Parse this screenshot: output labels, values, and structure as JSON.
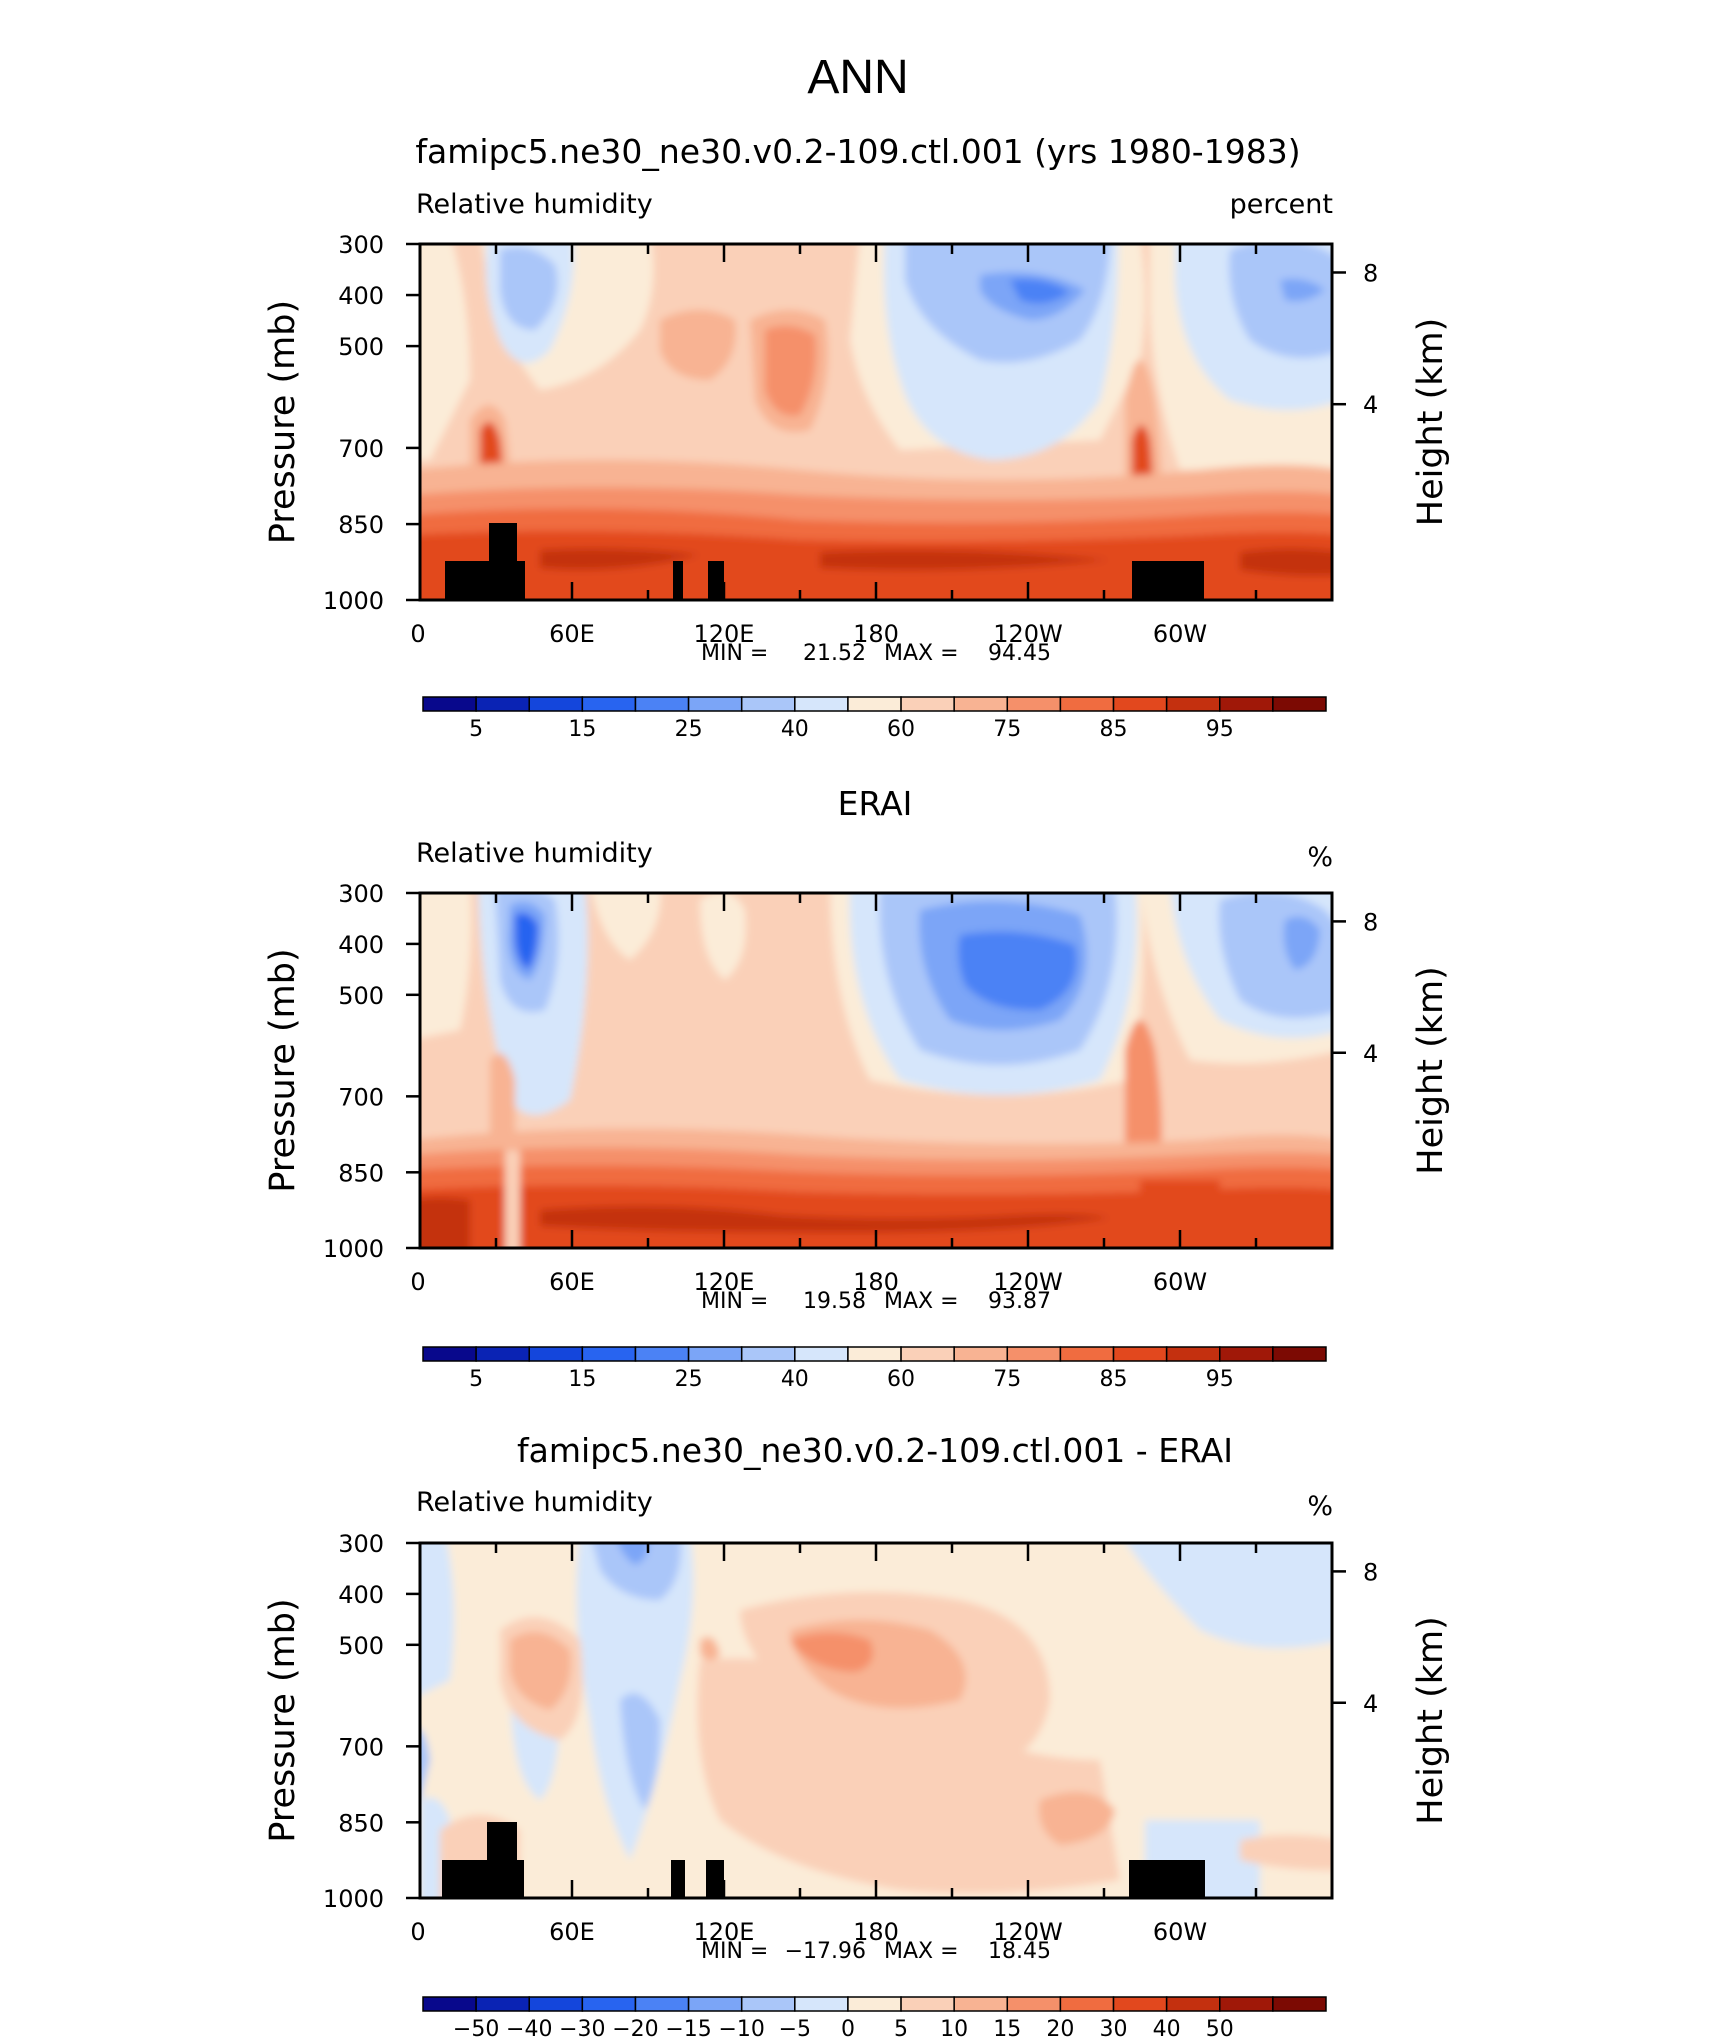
{
  "page_title": "ANN",
  "colors": {
    "cb_main": [
      "#08088c",
      "#0a23b4",
      "#1446dc",
      "#2864f0",
      "#4b82f5",
      "#7ba5f7",
      "#aac6f9",
      "#d6e6fb",
      "#fbecd8",
      "#fad0b8",
      "#f8b393",
      "#f5906a",
      "#f06c40",
      "#e2481e",
      "#c4300f",
      "#a01808",
      "#7c0a03"
    ],
    "cb_diff": [
      "#08088c",
      "#0a23b4",
      "#1446dc",
      "#2864f0",
      "#4b82f5",
      "#7ba5f7",
      "#aac6f9",
      "#d6e6fb",
      "#fbecd8",
      "#fad0b8",
      "#f8b393",
      "#f5906a",
      "#f06c40",
      "#e2481e",
      "#c4300f",
      "#a01808",
      "#7c0a03"
    ]
  },
  "chart_data": [
    {
      "type": "heatmap",
      "title": "famipc5.ne30_ne30.v0.2-109.ctl.001 (yrs 1980-1983)",
      "variable": "Relative humidity",
      "units": "percent",
      "ylabel": "Pressure (mb)",
      "ylabel_right": "Height (km)",
      "xticks": [
        "0",
        "60E",
        "120E",
        "180",
        "120W",
        "60W"
      ],
      "yticks": [
        "300",
        "400",
        "500",
        "700",
        "850",
        "1000"
      ],
      "yticks_right": [
        "8",
        "4"
      ],
      "min_label": "MIN =",
      "min": "21.52",
      "max_label": "MAX =",
      "max": "94.45",
      "colorbar_labels": [
        "5",
        "15",
        "25",
        "40",
        "60",
        "75",
        "85",
        "95"
      ],
      "colorbar_levels": [
        5,
        10,
        15,
        20,
        25,
        30,
        40,
        50,
        60,
        65,
        70,
        75,
        80,
        85,
        90,
        95
      ]
    },
    {
      "type": "heatmap",
      "title": "ERAI",
      "variable": "Relative humidity",
      "units": "%",
      "ylabel": "Pressure (mb)",
      "ylabel_right": "Height (km)",
      "xticks": [
        "0",
        "60E",
        "120E",
        "180",
        "120W",
        "60W"
      ],
      "yticks": [
        "300",
        "400",
        "500",
        "700",
        "850",
        "1000"
      ],
      "yticks_right": [
        "8",
        "4"
      ],
      "min_label": "MIN =",
      "min": "19.58",
      "max_label": "MAX =",
      "max": "93.87",
      "colorbar_labels": [
        "5",
        "15",
        "25",
        "40",
        "60",
        "75",
        "85",
        "95"
      ],
      "colorbar_levels": [
        5,
        10,
        15,
        20,
        25,
        30,
        40,
        50,
        60,
        65,
        70,
        75,
        80,
        85,
        90,
        95
      ]
    },
    {
      "type": "heatmap",
      "title": "famipc5.ne30_ne30.v0.2-109.ctl.001 - ERAI",
      "variable": "Relative humidity",
      "units": "%",
      "ylabel": "Pressure (mb)",
      "ylabel_right": "Height (km)",
      "xticks": [
        "0",
        "60E",
        "120E",
        "180",
        "120W",
        "60W"
      ],
      "yticks": [
        "300",
        "400",
        "500",
        "700",
        "850",
        "1000"
      ],
      "yticks_right": [
        "8",
        "4"
      ],
      "min_label": "MIN =",
      "min": "−17.96",
      "max_label": "MAX =",
      "max": "18.45",
      "colorbar_labels": [
        "−50",
        "−40",
        "−30",
        "−20",
        "−15",
        "−10",
        "−5",
        "0",
        "5",
        "10",
        "15",
        "20",
        "30",
        "40",
        "50"
      ],
      "colorbar_levels": [
        -50,
        -40,
        -30,
        -20,
        -15,
        -10,
        -5,
        0,
        5,
        10,
        15,
        20,
        30,
        40,
        50
      ]
    }
  ]
}
